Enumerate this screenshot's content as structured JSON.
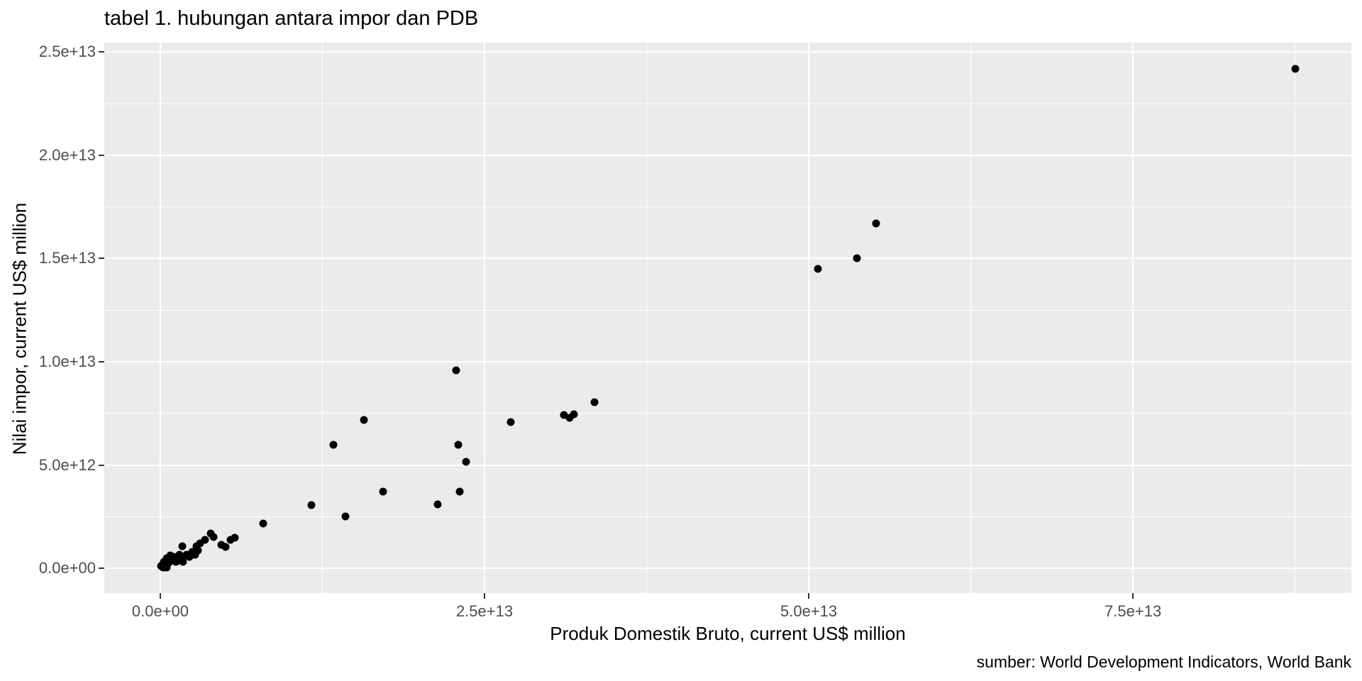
{
  "title": "tabel 1. hubungan antara impor dan PDB",
  "caption": "sumber: World Development Indicators, World Bank",
  "colors": {
    "background": "#FFFFFF",
    "panel_background": "#EBEBEB",
    "gridline": "#FFFFFF",
    "point": "#000000",
    "tick_label": "#4D4D4D",
    "tick_mark": "#333333",
    "text": "#000000"
  },
  "chart_data": {
    "type": "scatter",
    "title": "tabel 1. hubungan antara impor dan PDB",
    "xlabel": "Produk Domestik Bruto, current US$ million",
    "ylabel": "Nilai impor, current US$ million",
    "caption": "sumber: World Development Indicators, World Bank",
    "grid": true,
    "legend_position": "none",
    "xlim": [
      -4320000000000.0,
      91840000000000.0
    ],
    "ylim": [
      -1200000000000.0,
      25460000000000.0
    ],
    "x_ticks": [
      {
        "value": 0,
        "label": "0.0e+00"
      },
      {
        "value": 25000000000000.0,
        "label": "2.5e+13"
      },
      {
        "value": 50000000000000.0,
        "label": "5.0e+13"
      },
      {
        "value": 75000000000000.0,
        "label": "7.5e+13"
      }
    ],
    "y_ticks": [
      {
        "value": 0,
        "label": "0.0e+00"
      },
      {
        "value": 5000000000000.0,
        "label": "5.0e+12"
      },
      {
        "value": 10000000000000.0,
        "label": "1.0e+13"
      },
      {
        "value": 15000000000000.0,
        "label": "1.5e+13"
      },
      {
        "value": 20000000000000.0,
        "label": "2.0e+13"
      },
      {
        "value": 25000000000000.0,
        "label": "2.5e+13"
      }
    ],
    "x_minor": [
      12500000000000.0,
      37500000000000.0,
      62500000000000.0,
      87500000000000.0
    ],
    "y_minor": [
      2500000000000.0,
      7500000000000.0,
      12500000000000.0,
      17500000000000.0,
      22500000000000.0
    ],
    "points": [
      [
        50000000000.0,
        100000000000.0
      ],
      [
        110000000000.0,
        140000000000.0
      ],
      [
        220000000000.0,
        30000000000.0
      ],
      [
        270000000000.0,
        310000000000.0
      ],
      [
        380000000000.0,
        210000000000.0
      ],
      [
        490000000000.0,
        480000000000.0
      ],
      [
        490000000000.0,
        30000000000.0
      ],
      [
        660000000000.0,
        270000000000.0
      ],
      [
        770000000000.0,
        620000000000.0
      ],
      [
        930000000000.0,
        380000000000.0
      ],
      [
        1040000000000.0,
        550000000000.0
      ],
      [
        1200000000000.0,
        310000000000.0
      ],
      [
        1260000000000.0,
        480000000000.0
      ],
      [
        1480000000000.0,
        650000000000.0
      ],
      [
        1480000000000.0,
        380000000000.0
      ],
      [
        1700000000000.0,
        1070000000000.0
      ],
      [
        1750000000000.0,
        550000000000.0
      ],
      [
        1750000000000.0,
        310000000000.0
      ],
      [
        2020000000000.0,
        650000000000.0
      ],
      [
        2240000000000.0,
        550000000000.0
      ],
      [
        2460000000000.0,
        790000000000.0
      ],
      [
        2680000000000.0,
        650000000000.0
      ],
      [
        2790000000000.0,
        1070000000000.0
      ],
      [
        2900000000000.0,
        860000000000.0
      ],
      [
        3060000000000.0,
        1200000000000.0
      ],
      [
        3450000000000.0,
        1370000000000.0
      ],
      [
        3880000000000.0,
        1680000000000.0
      ],
      [
        4100000000000.0,
        1510000000000.0
      ],
      [
        4700000000000.0,
        1130000000000.0
      ],
      [
        5030000000000.0,
        1030000000000.0
      ],
      [
        5410000000000.0,
        1370000000000.0
      ],
      [
        5740000000000.0,
        1480000000000.0
      ],
      [
        7930000000000.0,
        2170000000000.0
      ],
      [
        11650000000000.0,
        3060000000000.0
      ],
      [
        13350000000000.0,
        5980000000000.0
      ],
      [
        14300000000000.0,
        2510000000000.0
      ],
      [
        15700000000000.0,
        7180000000000.0
      ],
      [
        17200000000000.0,
        3710000000000.0
      ],
      [
        21400000000000.0,
        3090000000000.0
      ],
      [
        22800000000000.0,
        9590000000000.0
      ],
      [
        23000000000000.0,
        5980000000000.0
      ],
      [
        23100000000000.0,
        3710000000000.0
      ],
      [
        23600000000000.0,
        5150000000000.0
      ],
      [
        27000000000000.0,
        7080000000000.0
      ],
      [
        31100000000000.0,
        7420000000000.0
      ],
      [
        31550000000000.0,
        7280000000000.0
      ],
      [
        31900000000000.0,
        7450000000000.0
      ],
      [
        33500000000000.0,
        8040000000000.0
      ],
      [
        50700000000000.0,
        14500000000000.0
      ],
      [
        53700000000000.0,
        15000000000000.0
      ],
      [
        55200000000000.0,
        16700000000000.0
      ],
      [
        87500000000000.0,
        24200000000000.0
      ]
    ]
  }
}
